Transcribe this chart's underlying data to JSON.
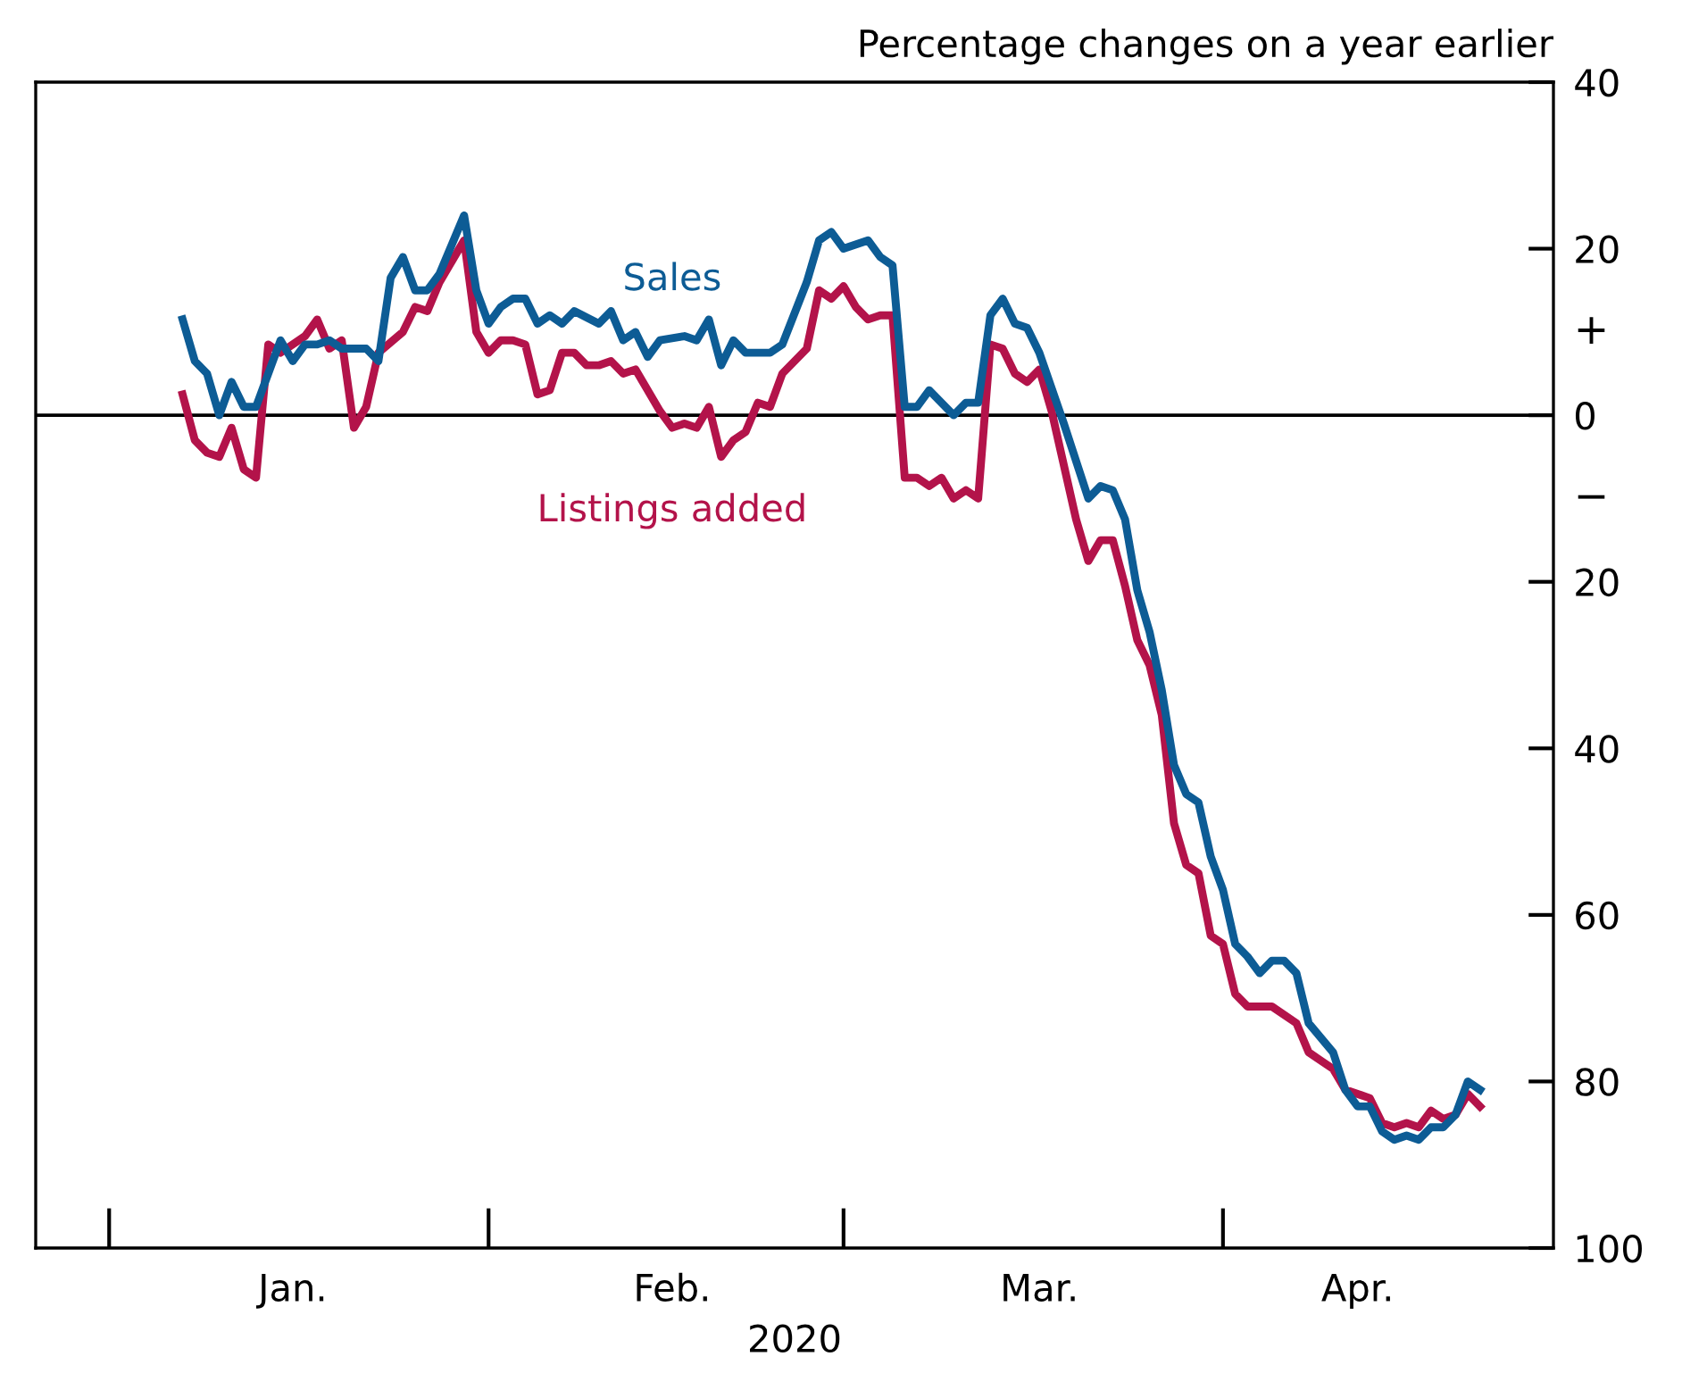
{
  "chart_data": {
    "type": "line",
    "ylabel": "Percentage changes on a year earlier",
    "xlabel": "2020",
    "annotations": [
      "+",
      "−"
    ],
    "xlim": [
      "2019-12-26",
      "2020-04-28"
    ],
    "xticks": [
      {
        "value": "2020-01-16",
        "label": "Jan."
      },
      {
        "value": "2020-02-16",
        "label": "Feb."
      },
      {
        "value": "2020-03-17",
        "label": "Mar."
      },
      {
        "value": "2020-04-12",
        "label": "Apr."
      }
    ],
    "ylim": [
      -100,
      40
    ],
    "yticks": [
      40,
      20,
      0,
      {
        "value": -20,
        "label": "20"
      },
      {
        "value": -40,
        "label": "40"
      },
      {
        "value": -60,
        "label": "60"
      },
      {
        "value": -80,
        "label": "80"
      },
      {
        "value": -100,
        "label": "100"
      }
    ],
    "ref_lines": [
      {
        "axis": "y",
        "value": 0,
        "color": "#000000"
      }
    ],
    "grid": false,
    "legend": false,
    "line_style": "solid",
    "series": [
      {
        "name": "Sales",
        "color": "#0d5c95",
        "x": [
          "2020-01-07",
          "2020-01-08",
          "2020-01-09",
          "2020-01-10",
          "2020-01-11",
          "2020-01-12",
          "2020-01-13",
          "2020-01-15",
          "2020-01-16",
          "2020-01-17",
          "2020-01-18",
          "2020-01-19",
          "2020-01-20",
          "2020-01-22",
          "2020-01-23",
          "2020-01-24",
          "2020-01-25",
          "2020-01-26",
          "2020-01-27",
          "2020-01-28",
          "2020-01-30",
          "2020-01-31",
          "2020-02-01",
          "2020-02-02",
          "2020-02-03",
          "2020-02-04",
          "2020-02-05",
          "2020-02-06",
          "2020-02-07",
          "2020-02-08",
          "2020-02-10",
          "2020-02-11",
          "2020-02-12",
          "2020-02-13",
          "2020-02-14",
          "2020-02-15",
          "2020-02-17",
          "2020-02-18",
          "2020-02-19",
          "2020-02-20",
          "2020-02-21",
          "2020-02-22",
          "2020-02-24",
          "2020-02-25",
          "2020-02-27",
          "2020-02-28",
          "2020-02-29",
          "2020-03-01",
          "2020-03-03",
          "2020-03-04",
          "2020-03-05",
          "2020-03-06",
          "2020-03-07",
          "2020-03-08",
          "2020-03-10",
          "2020-03-11",
          "2020-03-12",
          "2020-03-13",
          "2020-03-14",
          "2020-03-15",
          "2020-03-16",
          "2020-03-17",
          "2020-03-19",
          "2020-03-21",
          "2020-03-22",
          "2020-03-23",
          "2020-03-24",
          "2020-03-25",
          "2020-03-26",
          "2020-03-27",
          "2020-03-28",
          "2020-03-29",
          "2020-03-30",
          "2020-03-31",
          "2020-04-01",
          "2020-04-02",
          "2020-04-03",
          "2020-04-04",
          "2020-04-05",
          "2020-04-06",
          "2020-04-07",
          "2020-04-08",
          "2020-04-10",
          "2020-04-11",
          "2020-04-12",
          "2020-04-13",
          "2020-04-14",
          "2020-04-15",
          "2020-04-16",
          "2020-04-17",
          "2020-04-18",
          "2020-04-19",
          "2020-04-20",
          "2020-04-21",
          "2020-04-22"
        ],
        "values": [
          11.5,
          6.5,
          5,
          0,
          4,
          1,
          1,
          9,
          6.5,
          8.5,
          8.5,
          9,
          8,
          8,
          6.5,
          16.5,
          19,
          15,
          15,
          17,
          24,
          15,
          11,
          13,
          14,
          14,
          11,
          12,
          11,
          12.5,
          11,
          12.5,
          9,
          10,
          7,
          9,
          9.5,
          9,
          11.5,
          6,
          9,
          7.5,
          7.5,
          8.5,
          16,
          21,
          22,
          20,
          21,
          19,
          18,
          1,
          1,
          3,
          0,
          1.5,
          1.5,
          12,
          14,
          11,
          10.5,
          7.5,
          -1,
          -10,
          -8.5,
          -9,
          -12.5,
          -21,
          -26,
          -33,
          -42,
          -45.5,
          -46.5,
          -53,
          -57,
          -63.5,
          -65,
          -67,
          -65.5,
          -65.5,
          -67,
          -73,
          -76.5,
          -81,
          -83,
          -83,
          -86,
          -87,
          -86.5,
          -87,
          -85.5,
          -85.5,
          -84,
          -80,
          -81
        ]
      },
      {
        "name": "Listings added",
        "color": "#b3134a",
        "x": [
          "2020-01-07",
          "2020-01-08",
          "2020-01-09",
          "2020-01-10",
          "2020-01-11",
          "2020-01-12",
          "2020-01-13",
          "2020-01-14",
          "2020-01-15",
          "2020-01-17",
          "2020-01-18",
          "2020-01-19",
          "2020-01-20",
          "2020-01-21",
          "2020-01-22",
          "2020-01-23",
          "2020-01-25",
          "2020-01-26",
          "2020-01-27",
          "2020-01-28",
          "2020-01-30",
          "2020-01-31",
          "2020-02-01",
          "2020-02-02",
          "2020-02-03",
          "2020-02-04",
          "2020-02-05",
          "2020-02-06",
          "2020-02-07",
          "2020-02-08",
          "2020-02-09",
          "2020-02-10",
          "2020-02-11",
          "2020-02-12",
          "2020-02-13",
          "2020-02-15",
          "2020-02-16",
          "2020-02-17",
          "2020-02-18",
          "2020-02-19",
          "2020-02-20",
          "2020-02-21",
          "2020-02-22",
          "2020-02-23",
          "2020-02-24",
          "2020-02-25",
          "2020-02-27",
          "2020-02-28",
          "2020-02-29",
          "2020-03-01",
          "2020-03-02",
          "2020-03-03",
          "2020-03-04",
          "2020-03-05",
          "2020-03-06",
          "2020-03-07",
          "2020-03-08",
          "2020-03-09",
          "2020-03-10",
          "2020-03-11",
          "2020-03-12",
          "2020-03-13",
          "2020-03-14",
          "2020-03-15",
          "2020-03-16",
          "2020-03-17",
          "2020-03-18",
          "2020-03-20",
          "2020-03-21",
          "2020-03-22",
          "2020-03-23",
          "2020-03-24",
          "2020-03-25",
          "2020-03-26",
          "2020-03-27",
          "2020-03-28",
          "2020-03-29",
          "2020-03-30",
          "2020-03-31",
          "2020-04-01",
          "2020-04-02",
          "2020-04-03",
          "2020-04-05",
          "2020-04-07",
          "2020-04-08",
          "2020-04-09",
          "2020-04-10",
          "2020-04-11",
          "2020-04-13",
          "2020-04-14",
          "2020-04-15",
          "2020-04-16",
          "2020-04-17",
          "2020-04-18",
          "2020-04-19",
          "2020-04-20",
          "2020-04-21",
          "2020-04-22"
        ],
        "values": [
          2.5,
          -3,
          -4.5,
          -5,
          -1.5,
          -6.5,
          -7.5,
          8.5,
          7.5,
          9.5,
          11.5,
          8,
          9,
          -1.5,
          1,
          7.5,
          10,
          13,
          12.5,
          16,
          21,
          10,
          7.5,
          9,
          9,
          8.5,
          2.5,
          3,
          7.5,
          7.5,
          6,
          6,
          6.5,
          5,
          5.5,
          0.5,
          -1.5,
          -1,
          -1.5,
          1,
          -5,
          -3,
          -2,
          1.5,
          1,
          5,
          8,
          15,
          14,
          15.5,
          13,
          11.5,
          12,
          12,
          -7.5,
          -7.5,
          -8.5,
          -7.5,
          -10,
          -9,
          -10,
          8.5,
          8,
          5,
          4,
          5.5,
          0.5,
          -12.5,
          -17.5,
          -15,
          -15,
          -20.5,
          -27,
          -30,
          -36,
          -49,
          -54,
          -55,
          -62.5,
          -63.5,
          -69.5,
          -71,
          -71,
          -73,
          -76.5,
          -77.5,
          -78.5,
          -81,
          -82,
          -85,
          -85.5,
          -85,
          -85.5,
          -83.5,
          -84.5,
          -84,
          -81.5,
          -83
        ]
      }
    ]
  }
}
